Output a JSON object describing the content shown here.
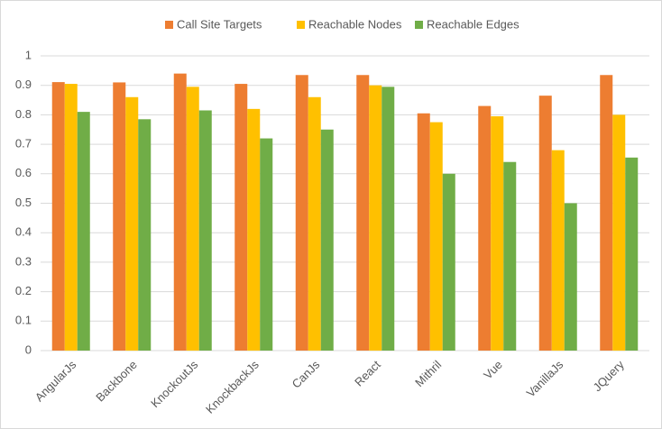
{
  "chart_data": {
    "type": "bar",
    "categories": [
      "AngularJs",
      "Backbone",
      "KnockoutJs",
      "KnockbackJs",
      "CanJs",
      "React",
      "Mithril",
      "Vue",
      "VanillaJs",
      "JQuery"
    ],
    "series": [
      {
        "name": "Call Site Targets",
        "color": "#ED7D31",
        "values": [
          0.911,
          0.91,
          0.94,
          0.905,
          0.935,
          0.935,
          0.805,
          0.83,
          0.865,
          0.935
        ]
      },
      {
        "name": "Reachable Nodes",
        "color": "#FFC000",
        "values": [
          0.905,
          0.86,
          0.895,
          0.82,
          0.86,
          0.9,
          0.775,
          0.795,
          0.68,
          0.8
        ]
      },
      {
        "name": "Reachable Edges",
        "color": "#70AD47",
        "values": [
          0.81,
          0.785,
          0.815,
          0.72,
          0.75,
          0.895,
          0.6,
          0.64,
          0.5,
          0.655
        ]
      }
    ],
    "ylim": [
      0,
      1
    ],
    "yticks": [
      0,
      0.1,
      0.2,
      0.3,
      0.4,
      0.5,
      0.6,
      0.7,
      0.8,
      0.9,
      1
    ],
    "grid": true,
    "legend": "top"
  }
}
